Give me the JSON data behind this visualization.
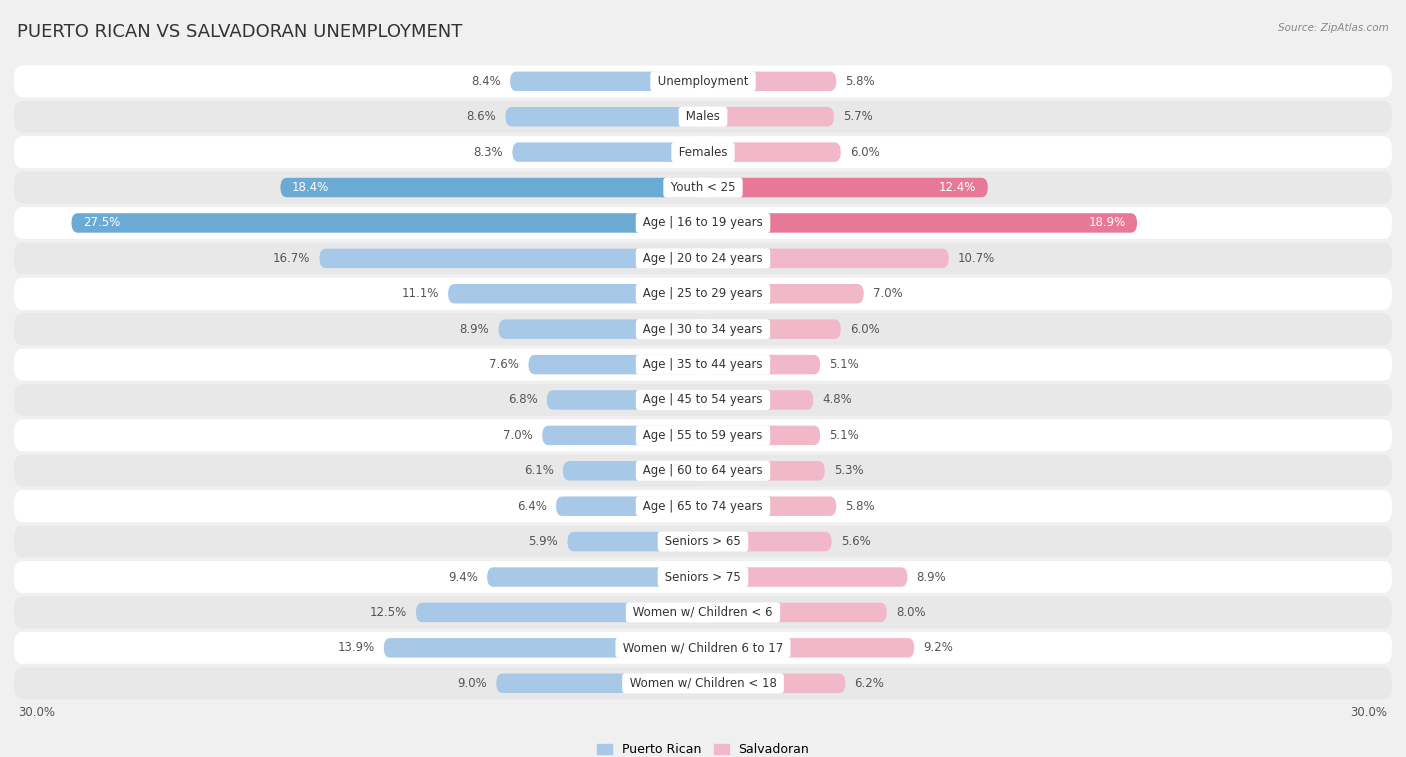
{
  "title": "PUERTO RICAN VS SALVADORAN UNEMPLOYMENT",
  "source": "Source: ZipAtlas.com",
  "categories": [
    "Unemployment",
    "Males",
    "Females",
    "Youth < 25",
    "Age | 16 to 19 years",
    "Age | 20 to 24 years",
    "Age | 25 to 29 years",
    "Age | 30 to 34 years",
    "Age | 35 to 44 years",
    "Age | 45 to 54 years",
    "Age | 55 to 59 years",
    "Age | 60 to 64 years",
    "Age | 65 to 74 years",
    "Seniors > 65",
    "Seniors > 75",
    "Women w/ Children < 6",
    "Women w/ Children 6 to 17",
    "Women w/ Children < 18"
  ],
  "left_values": [
    8.4,
    8.6,
    8.3,
    18.4,
    27.5,
    16.7,
    11.1,
    8.9,
    7.6,
    6.8,
    7.0,
    6.1,
    6.4,
    5.9,
    9.4,
    12.5,
    13.9,
    9.0
  ],
  "right_values": [
    5.8,
    5.7,
    6.0,
    12.4,
    18.9,
    10.7,
    7.0,
    6.0,
    5.1,
    4.8,
    5.1,
    5.3,
    5.8,
    5.6,
    8.9,
    8.0,
    9.2,
    6.2
  ],
  "left_color_normal": "#a8c8e8",
  "left_color_highlight": "#6aaad4",
  "right_color_normal": "#f0b8c8",
  "right_color_highlight": "#e87898",
  "highlight_rows": [
    3,
    4
  ],
  "max_value": 30.0,
  "bg_color": "#f0f0f0",
  "row_color_even": "#ffffff",
  "row_color_odd": "#e8e8e8",
  "legend_left": "Puerto Rican",
  "legend_right": "Salvadoran",
  "title_fontsize": 13,
  "label_fontsize": 8.5,
  "value_fontsize": 8.5
}
